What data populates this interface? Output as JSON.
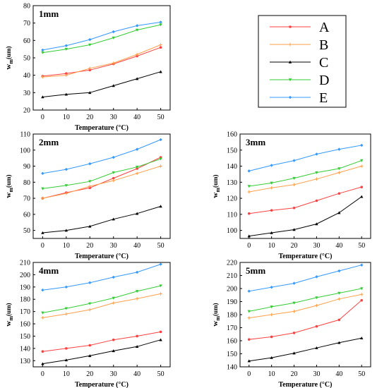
{
  "chart_data": [
    {
      "type": "line",
      "title": "1mm",
      "xlabel": "Temperature (°C)",
      "ylabel": "w",
      "ylabel_sub": "m",
      "ylabel_unit": "(um)",
      "x": [
        0,
        10,
        20,
        30,
        40,
        50
      ],
      "xticks": [
        "0",
        "10",
        "20",
        "30",
        "40",
        "50"
      ],
      "xlim": [
        -4,
        54
      ],
      "ylim": [
        20,
        80
      ],
      "yticks": [
        20,
        30,
        40,
        50,
        60,
        70,
        80
      ],
      "series": [
        {
          "name": "A",
          "values": [
            39.5,
            41,
            43,
            46.5,
            51,
            56
          ]
        },
        {
          "name": "B",
          "values": [
            39,
            40,
            44,
            47,
            52,
            57.5
          ]
        },
        {
          "name": "C",
          "values": [
            27.5,
            29,
            30,
            34,
            38,
            42
          ]
        },
        {
          "name": "D",
          "values": [
            53,
            55,
            57.5,
            61.5,
            66,
            69
          ]
        },
        {
          "name": "E",
          "values": [
            54.5,
            57,
            60.5,
            65,
            68.5,
            70.5
          ]
        }
      ]
    },
    {
      "type": "line",
      "title": "2mm",
      "xlabel": "Temperature (°C)",
      "ylabel": "w",
      "ylabel_sub": "m",
      "ylabel_unit": "(um)",
      "x": [
        0,
        10,
        20,
        30,
        40,
        50
      ],
      "xticks": [
        "0",
        "10",
        "20",
        "30",
        "40",
        "50"
      ],
      "xlim": [
        -4,
        54
      ],
      "ylim": [
        45,
        110
      ],
      "yticks": [
        50,
        60,
        70,
        80,
        90,
        100,
        110
      ],
      "series": [
        {
          "name": "A",
          "values": [
            70,
            73.5,
            76.5,
            82.5,
            88.5,
            95.5
          ]
        },
        {
          "name": "B",
          "values": [
            70,
            73,
            77.5,
            81,
            85.5,
            90
          ]
        },
        {
          "name": "C",
          "values": [
            48.5,
            50,
            52.5,
            57,
            60.5,
            65
          ]
        },
        {
          "name": "D",
          "values": [
            76,
            78,
            80.5,
            86,
            89.5,
            94.5
          ]
        },
        {
          "name": "E",
          "values": [
            85.5,
            88,
            91.5,
            95.5,
            100.5,
            106.5
          ]
        }
      ]
    },
    {
      "type": "line",
      "title": "3mm",
      "xlabel": "Temperature (°C)",
      "ylabel": "w",
      "ylabel_sub": "m",
      "ylabel_unit": "(um)",
      "x": [
        0,
        10,
        20,
        30,
        40,
        50
      ],
      "xticks": [
        "0",
        "10",
        "20",
        "30",
        "40",
        "50"
      ],
      "xlim": [
        -4,
        54
      ],
      "ylim": [
        95,
        160
      ],
      "yticks": [
        100,
        110,
        120,
        130,
        140,
        150,
        160
      ],
      "series": [
        {
          "name": "A",
          "values": [
            110.5,
            112.5,
            114,
            118.5,
            123,
            127
          ]
        },
        {
          "name": "B",
          "values": [
            124,
            126.5,
            128.5,
            132,
            136,
            140
          ]
        },
        {
          "name": "C",
          "values": [
            96.5,
            98.5,
            100.5,
            104,
            111,
            121
          ]
        },
        {
          "name": "D",
          "values": [
            127.5,
            129.5,
            132.5,
            136,
            138.5,
            143.5
          ]
        },
        {
          "name": "E",
          "values": [
            137,
            140.5,
            143.5,
            147.5,
            150.5,
            153
          ]
        }
      ]
    },
    {
      "type": "line",
      "title": "4mm",
      "xlabel": "Temperature (°C)",
      "ylabel": "w",
      "ylabel_sub": "m",
      "ylabel_unit": "(um)",
      "x": [
        0,
        10,
        20,
        30,
        40,
        50
      ],
      "xticks": [
        "0",
        "10",
        "20",
        "30",
        "40",
        "50"
      ],
      "xlim": [
        -4,
        54
      ],
      "ylim": [
        125,
        210
      ],
      "yticks": [
        130,
        140,
        150,
        160,
        170,
        180,
        190,
        200,
        210
      ],
      "series": [
        {
          "name": "A",
          "values": [
            137.5,
            140,
            142.5,
            147,
            150,
            153.5
          ]
        },
        {
          "name": "B",
          "values": [
            165,
            168,
            171.5,
            177,
            180.5,
            184.5
          ]
        },
        {
          "name": "C",
          "values": [
            127.5,
            130.5,
            134,
            138,
            141.5,
            147
          ]
        },
        {
          "name": "D",
          "values": [
            169,
            172.5,
            176.5,
            181,
            186.5,
            191
          ]
        },
        {
          "name": "E",
          "values": [
            187.5,
            190,
            193.5,
            198,
            202,
            208.5
          ]
        }
      ]
    },
    {
      "type": "line",
      "title": "5mm",
      "xlabel": "Temperature (°C)",
      "ylabel": "w",
      "ylabel_sub": "m",
      "ylabel_unit": "(um)",
      "x": [
        0,
        10,
        20,
        30,
        40,
        50
      ],
      "xticks": [
        "0",
        "10",
        "20",
        "30",
        "40",
        "50"
      ],
      "xlim": [
        -4,
        54
      ],
      "ylim": [
        140,
        220
      ],
      "yticks": [
        140,
        150,
        160,
        170,
        180,
        190,
        200,
        210,
        220
      ],
      "series": [
        {
          "name": "A",
          "values": [
            161,
            163,
            166,
            171,
            176,
            191
          ]
        },
        {
          "name": "B",
          "values": [
            177.5,
            180,
            182.5,
            187,
            192,
            195.5
          ]
        },
        {
          "name": "C",
          "values": [
            144.5,
            147,
            150.5,
            154.5,
            158.5,
            162
          ]
        },
        {
          "name": "D",
          "values": [
            182.5,
            186,
            189,
            193,
            196.5,
            200
          ]
        },
        {
          "name": "E",
          "values": [
            198,
            201,
            204,
            209,
            213.5,
            218
          ]
        }
      ]
    }
  ],
  "legend": {
    "placement": "top-right",
    "items": [
      {
        "label": "A",
        "color": "#ff4040",
        "marker": "circle"
      },
      {
        "label": "B",
        "color": "#ff9f4a",
        "marker": "star"
      },
      {
        "label": "C",
        "color": "#000000",
        "marker": "triangle"
      },
      {
        "label": "D",
        "color": "#33cc33",
        "marker": "triangle-down"
      },
      {
        "label": "E",
        "color": "#3399ff",
        "marker": "diamond"
      }
    ]
  }
}
